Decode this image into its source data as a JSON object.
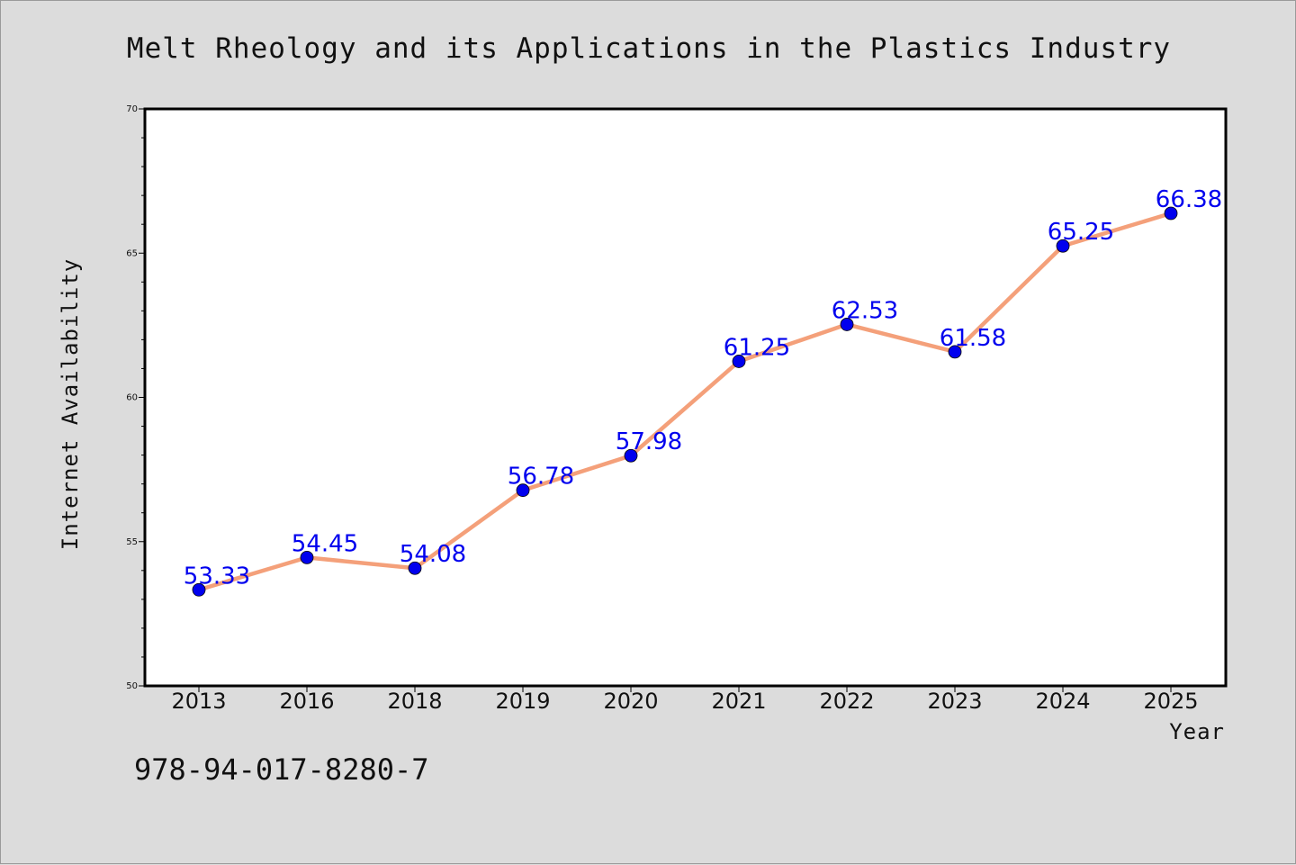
{
  "chart_data": {
    "type": "line",
    "title": "Melt Rheology and its Applications in the Plastics Industry",
    "xlabel": "Year",
    "ylabel": "Internet Availability",
    "categories": [
      "2013",
      "2016",
      "2018",
      "2019",
      "2020",
      "2021",
      "2022",
      "2023",
      "2024",
      "2025"
    ],
    "series": [
      {
        "values": [
          53.33,
          54.45,
          54.08,
          56.78,
          57.98,
          61.25,
          62.53,
          61.58,
          65.25,
          66.38
        ],
        "labels": [
          "53.33",
          "54.45",
          "54.08",
          "56.78",
          "57.98",
          "61.25",
          "62.53",
          "61.58",
          "65.25",
          "66.38"
        ],
        "line_color": "#f4a07a",
        "marker_color": "#0000ee",
        "label_color": "#0000ee"
      }
    ],
    "ylim": [
      50,
      70
    ],
    "yticks": [
      50,
      55,
      60,
      65,
      70
    ],
    "ytick_labels": [
      "50",
      "55",
      "60",
      "65",
      "70"
    ],
    "grid": false,
    "legend": "none"
  },
  "footnote": "978-94-017-8280-7",
  "colors": {
    "background": "#dcdcdc",
    "plot_background": "#ffffff",
    "axes": "#000000"
  }
}
